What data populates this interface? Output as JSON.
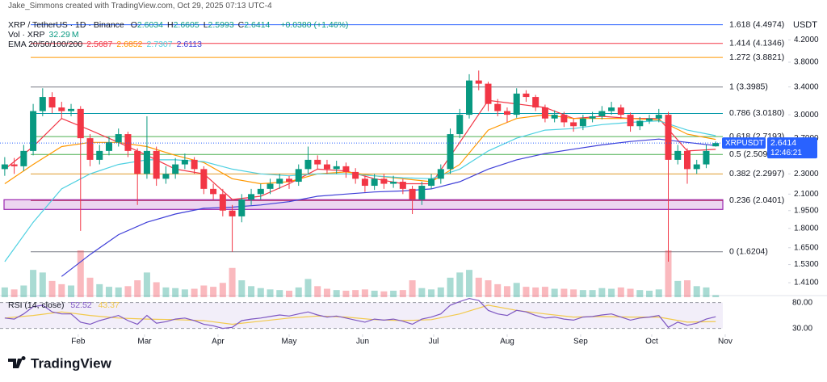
{
  "chart_data": {
    "type": "candlestick",
    "watermark": "Jake_Simmons created with TradingView.com, Oct 29, 2025 07:13 UTC-4",
    "symbol": "XRP / TetherUS · 1D · Binance",
    "ohlc_letters": [
      "O",
      "H",
      "L",
      "C"
    ],
    "change": "+0.0380 (+1.46%)",
    "vol_label": "Vol · XRP",
    "vol_unit": "M",
    "currency": "USDT",
    "ticker_tag": "XRPUSDT",
    "countdown": "12:46:21",
    "brand": "TradingView",
    "log_scale": true,
    "up_color": "#089981",
    "down_color": "#f23645",
    "xlim": [
      -2,
      303
    ],
    "xticks": [
      {
        "value": 31,
        "label": "Feb"
      },
      {
        "value": 59,
        "label": "Mar"
      },
      {
        "value": 90,
        "label": "Apr"
      },
      {
        "value": 120,
        "label": "May"
      },
      {
        "value": 151,
        "label": "Jun"
      },
      {
        "value": 181,
        "label": "Jul"
      },
      {
        "value": 212,
        "label": "Aug"
      },
      {
        "value": 243,
        "label": "Sep"
      },
      {
        "value": 273,
        "label": "Oct"
      },
      {
        "value": 304,
        "label": "Nov"
      }
    ],
    "ylim": [
      1.321,
      4.777
    ],
    "yticks": [
      {
        "value": 4.2,
        "label": "4.2000"
      },
      {
        "value": 3.8,
        "label": "3.8000"
      },
      {
        "value": 3.4,
        "label": "3.4000"
      },
      {
        "value": 3.0,
        "label": "3.0000"
      },
      {
        "value": 2.7,
        "label": "2.7000"
      },
      {
        "value": 2.3,
        "label": "2.3000"
      },
      {
        "value": 2.1,
        "label": "2.1000"
      },
      {
        "value": 1.95,
        "label": "1.9500"
      },
      {
        "value": 1.8,
        "label": "1.8000"
      },
      {
        "value": 1.65,
        "label": "1.6500"
      },
      {
        "value": 1.53,
        "label": "1.5300"
      },
      {
        "value": 1.41,
        "label": "1.4100"
      }
    ],
    "x": [
      0,
      4,
      8,
      12,
      16,
      20,
      24,
      28,
      32,
      36,
      40,
      44,
      48,
      52,
      56,
      60,
      64,
      68,
      72,
      76,
      80,
      84,
      88,
      92,
      96,
      100,
      104,
      108,
      112,
      116,
      120,
      124,
      128,
      132,
      136,
      140,
      144,
      148,
      152,
      156,
      160,
      164,
      168,
      172,
      176,
      180,
      184,
      188,
      192,
      196,
      200,
      204,
      208,
      212,
      216,
      220,
      224,
      228,
      232,
      236,
      240,
      244,
      248,
      252,
      256,
      260,
      264,
      268,
      272,
      276,
      280,
      284,
      288,
      292,
      296,
      300
    ],
    "open": [
      2.35,
      2.4,
      2.38,
      2.55,
      3.05,
      3.25,
      3.1,
      3.05,
      3.08,
      2.7,
      2.45,
      2.55,
      2.65,
      2.75,
      2.55,
      2.3,
      2.55,
      2.25,
      2.3,
      2.4,
      2.45,
      2.35,
      2.15,
      2.1,
      1.95,
      1.9,
      2.05,
      2.1,
      2.15,
      2.2,
      2.25,
      2.22,
      2.35,
      2.45,
      2.4,
      2.35,
      2.38,
      2.32,
      2.25,
      2.18,
      2.25,
      2.2,
      2.22,
      2.15,
      2.05,
      2.18,
      2.25,
      2.35,
      2.75,
      3.0,
      3.5,
      3.45,
      3.15,
      3.05,
      3.0,
      3.3,
      3.25,
      3.1,
      2.95,
      3.0,
      2.9,
      2.85,
      2.95,
      2.98,
      3.05,
      3.1,
      3.0,
      2.85,
      2.92,
      2.95,
      3.0,
      2.45,
      2.55,
      2.35,
      2.4,
      2.6034
    ],
    "high": [
      2.48,
      2.47,
      2.62,
      3.15,
      3.38,
      3.32,
      3.18,
      3.15,
      3.12,
      2.75,
      2.62,
      2.72,
      2.82,
      2.78,
      2.58,
      2.98,
      2.6,
      2.38,
      2.47,
      2.52,
      2.48,
      2.38,
      2.2,
      2.15,
      2.0,
      2.1,
      2.15,
      2.2,
      2.25,
      2.3,
      2.28,
      2.4,
      2.6,
      2.5,
      2.45,
      2.44,
      2.42,
      2.36,
      2.28,
      2.3,
      2.3,
      2.28,
      2.25,
      2.18,
      2.22,
      2.3,
      2.4,
      2.82,
      3.08,
      3.6,
      3.66,
      3.48,
      3.22,
      3.1,
      3.38,
      3.35,
      3.28,
      3.14,
      3.06,
      3.04,
      2.95,
      3.0,
      3.04,
      3.12,
      3.18,
      3.14,
      3.03,
      2.97,
      3.0,
      3.08,
      3.04,
      2.62,
      2.58,
      2.45,
      2.62,
      2.6605
    ],
    "low": [
      2.28,
      2.3,
      2.33,
      2.5,
      2.98,
      3.02,
      2.95,
      2.98,
      1.78,
      2.38,
      2.4,
      2.5,
      2.6,
      2.48,
      2.0,
      2.25,
      2.18,
      2.2,
      2.25,
      2.35,
      2.3,
      2.1,
      2.05,
      1.9,
      1.62,
      1.85,
      2.0,
      2.05,
      2.1,
      2.15,
      2.15,
      2.18,
      2.3,
      2.35,
      2.3,
      2.3,
      2.26,
      2.2,
      2.12,
      2.14,
      2.15,
      2.16,
      2.1,
      1.92,
      2.0,
      2.15,
      2.2,
      2.3,
      2.7,
      2.95,
      3.35,
      3.05,
      2.98,
      2.9,
      2.96,
      3.18,
      3.05,
      2.9,
      2.9,
      2.84,
      2.78,
      2.8,
      2.9,
      2.94,
      3.0,
      2.95,
      2.78,
      2.8,
      2.88,
      2.9,
      1.55,
      2.4,
      2.2,
      2.3,
      2.36,
      2.5993
    ],
    "close": [
      2.4,
      2.38,
      2.55,
      3.05,
      3.25,
      3.1,
      3.05,
      3.08,
      2.7,
      2.45,
      2.55,
      2.65,
      2.75,
      2.55,
      2.3,
      2.55,
      2.25,
      2.3,
      2.4,
      2.45,
      2.35,
      2.15,
      2.1,
      1.95,
      1.9,
      2.05,
      2.1,
      2.15,
      2.2,
      2.25,
      2.22,
      2.35,
      2.45,
      2.4,
      2.35,
      2.38,
      2.32,
      2.25,
      2.18,
      2.25,
      2.2,
      2.22,
      2.15,
      2.05,
      2.18,
      2.25,
      2.35,
      2.75,
      3.0,
      3.5,
      3.45,
      3.15,
      3.05,
      3.0,
      3.3,
      3.25,
      3.1,
      2.95,
      3.0,
      2.9,
      2.85,
      2.95,
      2.98,
      3.05,
      3.1,
      3.0,
      2.85,
      2.92,
      2.95,
      3.0,
      2.45,
      2.55,
      2.35,
      2.4,
      2.55,
      2.6414
    ],
    "volume": [
      150,
      120,
      180,
      420,
      380,
      250,
      200,
      180,
      720,
      300,
      200,
      160,
      150,
      170,
      260,
      380,
      230,
      150,
      140,
      120,
      130,
      180,
      160,
      220,
      450,
      260,
      170,
      140,
      120,
      110,
      100,
      150,
      280,
      170,
      130,
      110,
      100,
      110,
      120,
      100,
      90,
      100,
      110,
      260,
      140,
      120,
      150,
      300,
      380,
      420,
      300,
      260,
      200,
      170,
      220,
      160,
      150,
      160,
      130,
      130,
      120,
      110,
      110,
      140,
      130,
      150,
      130,
      110,
      100,
      120,
      720,
      250,
      260,
      170,
      150,
      32.29
    ],
    "ema_label": "EMA 20/50/100/200",
    "ema_x": [
      0,
      12,
      24,
      36,
      48,
      60,
      72,
      84,
      96,
      108,
      120,
      132,
      144,
      156,
      168,
      180,
      192,
      204,
      216,
      228,
      240,
      252,
      264,
      276,
      288,
      300
    ],
    "ema": [
      {
        "color": "#f23645",
        "values": [
          2.35,
          2.6,
          2.95,
          2.8,
          2.65,
          2.5,
          2.35,
          2.3,
          2.05,
          2.08,
          2.2,
          2.35,
          2.33,
          2.25,
          2.2,
          2.2,
          2.65,
          3.2,
          3.15,
          3.1,
          2.95,
          2.98,
          2.95,
          2.95,
          2.55,
          2.5687
        ]
      },
      {
        "color": "#ff9800",
        "values": [
          2.2,
          2.4,
          2.6,
          2.65,
          2.65,
          2.6,
          2.5,
          2.42,
          2.25,
          2.2,
          2.22,
          2.3,
          2.32,
          2.28,
          2.25,
          2.22,
          2.4,
          2.8,
          2.95,
          3.0,
          2.95,
          2.95,
          2.95,
          2.93,
          2.75,
          2.6852
        ]
      },
      {
        "color": "#4dd0e1",
        "values": [
          1.55,
          1.85,
          2.15,
          2.3,
          2.4,
          2.45,
          2.45,
          2.43,
          2.35,
          2.3,
          2.28,
          2.3,
          2.3,
          2.28,
          2.26,
          2.25,
          2.35,
          2.55,
          2.7,
          2.8,
          2.82,
          2.87,
          2.9,
          2.92,
          2.8,
          2.7307
        ]
      },
      {
        "color": "#3f3fd8",
        "values": [
          null,
          null,
          1.45,
          1.6,
          1.75,
          1.85,
          1.92,
          1.97,
          1.98,
          2.0,
          2.03,
          2.08,
          2.1,
          2.12,
          2.13,
          2.15,
          2.22,
          2.35,
          2.45,
          2.52,
          2.57,
          2.62,
          2.66,
          2.69,
          2.65,
          2.6113
        ]
      }
    ],
    "fib": [
      {
        "price": 4.4974,
        "label": "1.618 (4.4974)",
        "color": "#2962ff"
      },
      {
        "price": 4.1346,
        "label": "1.414 (4.1346)",
        "color": "#f23645"
      },
      {
        "price": 3.8821,
        "label": "1.272 (3.8821)",
        "color": "#ff9800"
      },
      {
        "price": 3.3985,
        "label": "1 (3.3985)",
        "color": "#787b86"
      },
      {
        "price": 3.018,
        "label": "0.786 (3.0180)",
        "color": "#0097a7"
      },
      {
        "price": 2.7193,
        "label": "0.618 (2.7193)",
        "color": "#4caf50"
      },
      {
        "price": 2.5095,
        "label": "0.5 (2.5095)",
        "color": "#4caf50"
      },
      {
        "price": 2.2997,
        "label": "0.382 (2.2997)",
        "color": "#e09b2d"
      },
      {
        "price": 2.0401,
        "label": "0.236 (2.0401)",
        "color": "#b0245a"
      },
      {
        "price": 1.6204,
        "label": "0 (1.6204)",
        "color": "#787b86"
      }
    ],
    "rsi": {
      "label": "RSI (14, close)",
      "color": "#7e57c2",
      "ma_color": "#f2c94c",
      "ylim": [
        20,
        92
      ],
      "yticks": [
        {
          "value": 80,
          "label": "80.00"
        },
        {
          "value": 30,
          "label": "30.00"
        }
      ],
      "values": [
        50,
        48,
        58,
        72,
        75,
        62,
        58,
        58,
        42,
        38,
        45,
        50,
        55,
        45,
        38,
        55,
        40,
        43,
        48,
        50,
        45,
        38,
        35,
        30,
        32,
        45,
        48,
        50,
        53,
        56,
        54,
        58,
        62,
        56,
        52,
        54,
        50,
        46,
        42,
        48,
        46,
        48,
        44,
        38,
        48,
        52,
        58,
        75,
        82,
        88,
        84,
        65,
        58,
        55,
        65,
        62,
        55,
        50,
        52,
        48,
        46,
        52,
        53,
        56,
        58,
        52,
        46,
        50,
        52,
        55,
        32,
        42,
        36,
        40,
        48,
        52.52
      ],
      "ma": [
        50,
        55,
        62,
        55,
        50,
        48,
        47,
        45,
        38,
        44,
        50,
        54,
        52,
        47,
        45,
        47,
        58,
        75,
        65,
        58,
        52,
        53,
        52,
        52,
        42,
        43.37
      ]
    }
  }
}
